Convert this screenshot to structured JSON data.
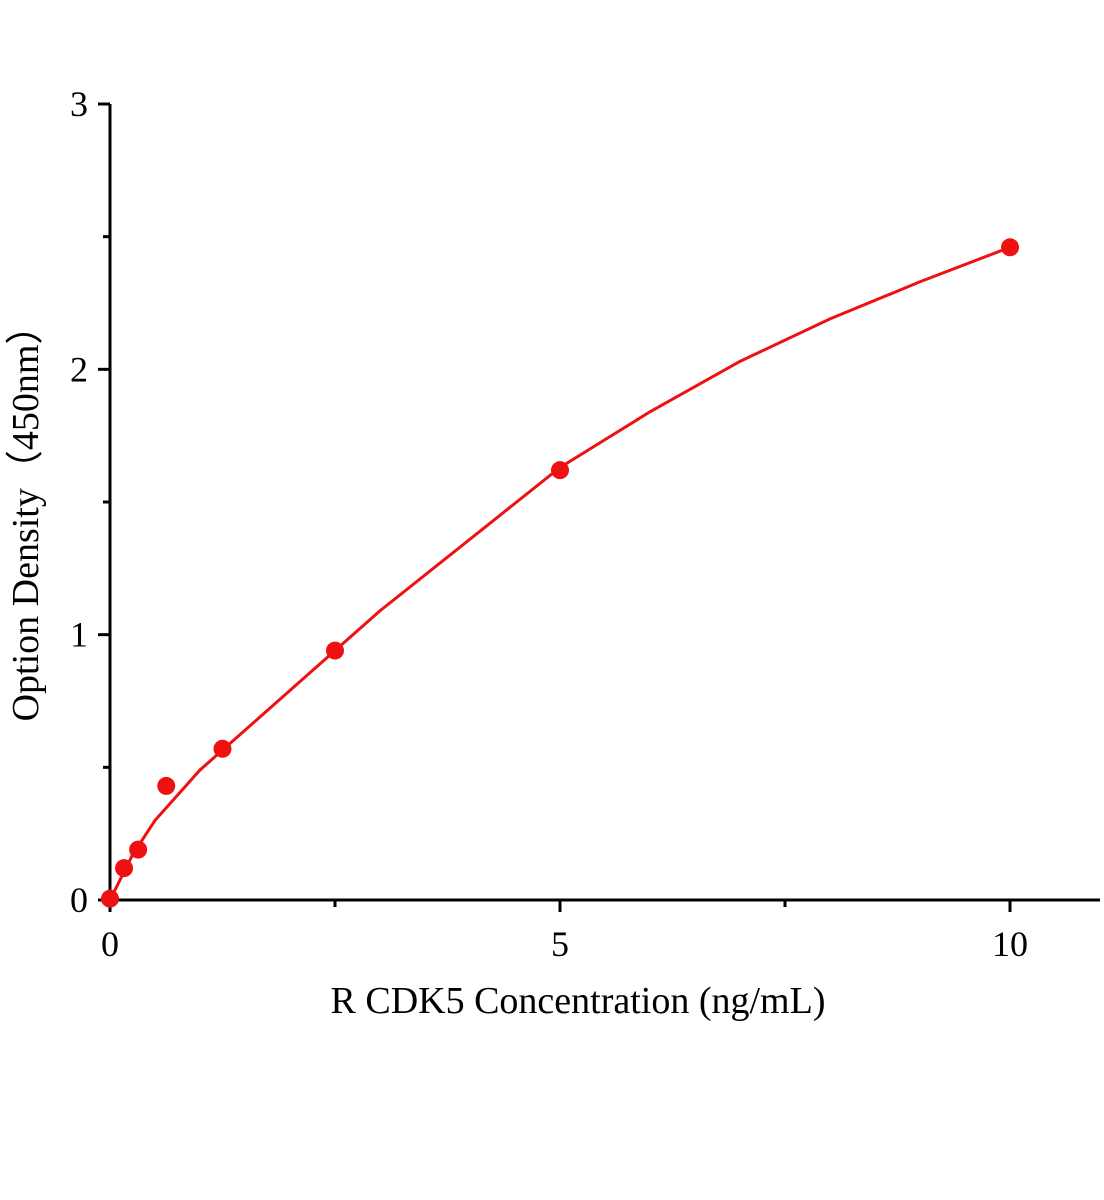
{
  "chart_data": {
    "type": "scatter",
    "x_label": "R CDK5  Concentration (ng/mL)",
    "y_label": "Option Density（450nm）",
    "xlim": [
      0,
      11
    ],
    "ylim": [
      0,
      3
    ],
    "xticks": [
      0,
      5,
      10
    ],
    "yticks": [
      0,
      1,
      2,
      3
    ],
    "x_minor_ticks": [
      2.5,
      7.5
    ],
    "y_minor_ticks": [
      0.5,
      1.5,
      2.5
    ],
    "series": [
      {
        "color": "#ee1111",
        "x": [
          0,
          0.156,
          0.3125,
          0.625,
          1.25,
          2.5,
          5,
          10
        ],
        "values": [
          0.005,
          0.12,
          0.19,
          0.43,
          0.57,
          0.94,
          1.62,
          2.46
        ]
      }
    ],
    "fit": {
      "color": "#ee1111",
      "x": [
        0,
        0.25,
        0.5,
        1,
        2,
        3,
        4,
        5,
        6,
        7,
        8,
        9,
        10
      ],
      "values": [
        0,
        0.17,
        0.3,
        0.49,
        0.79,
        1.09,
        1.36,
        1.63,
        1.84,
        2.03,
        2.19,
        2.33,
        2.46
      ]
    }
  }
}
